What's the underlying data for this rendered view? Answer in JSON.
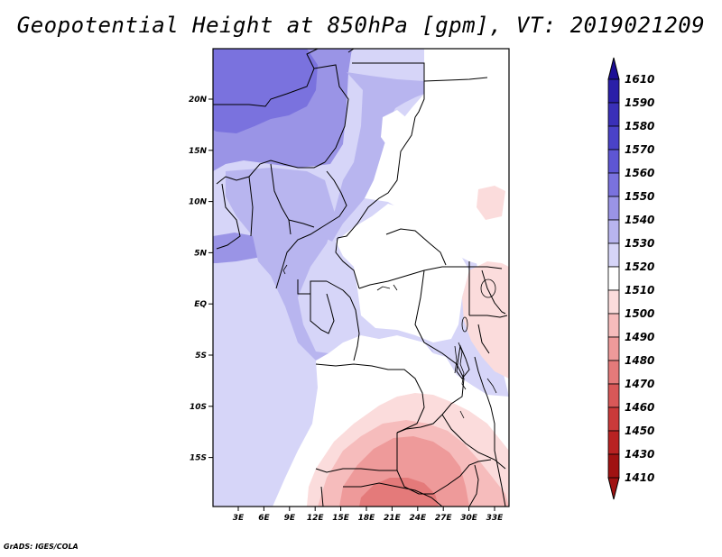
{
  "title": "Geopotential Height at 850hPa [gpm], VT: 2019021209",
  "footer": "GrADS: IGES/COLA",
  "map": {
    "lon_labels": [
      "3E",
      "6E",
      "9E",
      "12E",
      "15E",
      "18E",
      "21E",
      "24E",
      "27E",
      "30E",
      "33E"
    ],
    "lat_labels": [
      "20N",
      "15N",
      "10N",
      "5N",
      "EQ",
      "5S",
      "10S",
      "15S"
    ]
  },
  "colorbar": {
    "levels": [
      "1610",
      "1590",
      "1580",
      "1570",
      "1560",
      "1550",
      "1540",
      "1530",
      "1520",
      "1510",
      "1500",
      "1490",
      "1480",
      "1470",
      "1460",
      "1450",
      "1430",
      "1410"
    ],
    "colors": [
      "#1c0e96",
      "#2a1fa8",
      "#3a30b8",
      "#4a42c8",
      "#5e56d4",
      "#7a72de",
      "#9a94e6",
      "#b8b5ef",
      "#d6d5f8",
      "#ffffff",
      "#fbdcdc",
      "#f6bcbc",
      "#ee9a9a",
      "#e47a7a",
      "#d85858",
      "#ca3a3a",
      "#b82222",
      "#a01212"
    ]
  },
  "colors": {
    "purple_deep": "#7a72de",
    "purple_mid": "#9a94e6",
    "purple_light": "#b8b5ef",
    "lavender": "#d6d5f8",
    "white": "#ffffff",
    "pink_light": "#fbdcdc",
    "pink_mid": "#f6bcbc",
    "salmon": "#ee9a9a",
    "salmon_dark": "#e47a7a"
  }
}
